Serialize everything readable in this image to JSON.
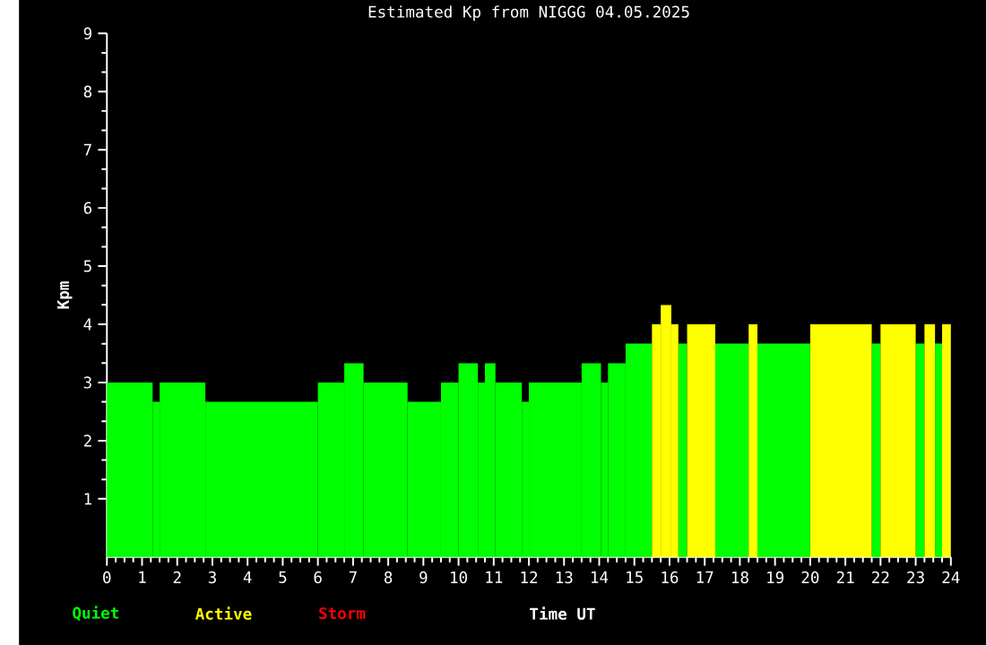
{
  "chart_data": {
    "type": "histogram",
    "title": "Estimated Kp from NIGGG 04.05.2025",
    "xlabel": "Time UT",
    "ylabel": "Kpm",
    "bins": [
      0,
      1.3,
      1.5,
      2.8,
      6.0,
      6.75,
      7.3,
      8.55,
      9.5,
      10.0,
      10.55,
      10.75,
      11.05,
      11.8,
      12.0,
      13.5,
      14.05,
      14.25,
      14.75,
      15.5,
      15.75,
      16.05,
      16.25,
      16.5,
      17.3,
      18.25,
      18.5,
      20.0,
      21.75,
      22.0,
      23.0,
      23.25,
      23.55,
      23.75,
      24
    ],
    "series": [
      {
        "name": "Quiet",
        "color": "#00ff00",
        "values": [
          3,
          2.67,
          3,
          2.67,
          3,
          3.33,
          3,
          2.67,
          3,
          3.33,
          3,
          3.33,
          3,
          2.67,
          3,
          3.33,
          3,
          3.33,
          3.67,
          null,
          null,
          null,
          3.67,
          null,
          3.67,
          null,
          3.67,
          null,
          3.67,
          null,
          3.67,
          null,
          3.67,
          null
        ]
      },
      {
        "name": "Active",
        "color": "#ffff00",
        "values": [
          null,
          null,
          null,
          null,
          null,
          null,
          null,
          null,
          null,
          null,
          null,
          null,
          null,
          null,
          null,
          null,
          null,
          null,
          null,
          4,
          4.33,
          4,
          null,
          4,
          null,
          4,
          null,
          4,
          null,
          4,
          null,
          4,
          null,
          4
        ]
      }
    ],
    "annotations": [
      "Storm"
    ],
    "xlim": [
      0,
      24
    ],
    "xticks": [
      0,
      1,
      2,
      3,
      4,
      5,
      6,
      7,
      8,
      9,
      10,
      11,
      12,
      13,
      14,
      15,
      16,
      17,
      18,
      19,
      20,
      21,
      22,
      23,
      24
    ],
    "ylim": [
      0,
      9
    ],
    "yticks": [
      1,
      2,
      3,
      4,
      5,
      6,
      7,
      8,
      9
    ],
    "legend": "bottom"
  }
}
